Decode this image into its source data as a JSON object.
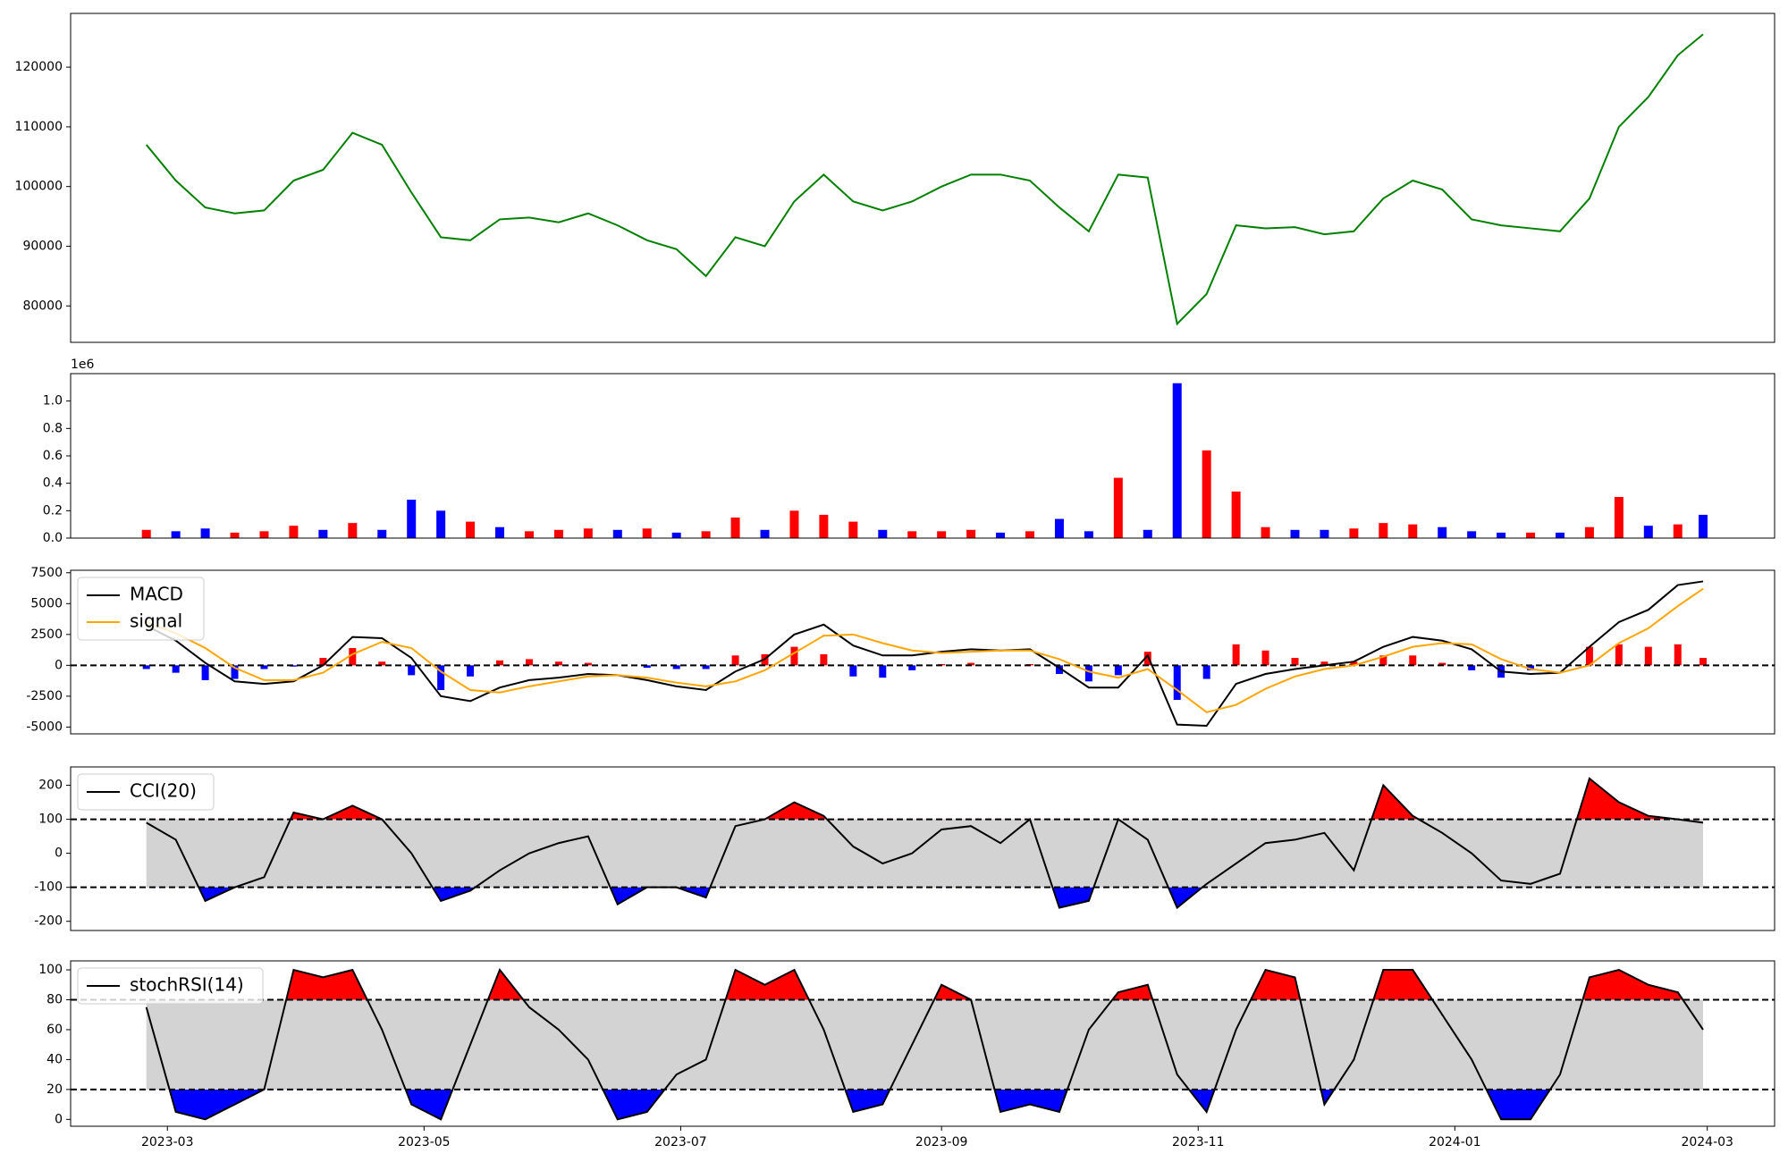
{
  "chart_data": [
    {
      "type": "line",
      "x": [
        "2023-02-24",
        "2023-03-03",
        "2023-03-10",
        "2023-03-17",
        "2023-03-24",
        "2023-03-31",
        "2023-04-07",
        "2023-04-14",
        "2023-04-21",
        "2023-04-28",
        "2023-05-05",
        "2023-05-12",
        "2023-05-19",
        "2023-05-26",
        "2023-06-02",
        "2023-06-09",
        "2023-06-16",
        "2023-06-23",
        "2023-06-30",
        "2023-07-07",
        "2023-07-14",
        "2023-07-21",
        "2023-07-28",
        "2023-08-04",
        "2023-08-11",
        "2023-08-18",
        "2023-08-25",
        "2023-09-01",
        "2023-09-08",
        "2023-09-15",
        "2023-09-22",
        "2023-09-29",
        "2023-10-06",
        "2023-10-13",
        "2023-10-20",
        "2023-10-27",
        "2023-11-03",
        "2023-11-10",
        "2023-11-17",
        "2023-11-24",
        "2023-12-01",
        "2023-12-08",
        "2023-12-15",
        "2023-12-22",
        "2023-12-29",
        "2024-01-05",
        "2024-01-12",
        "2024-01-19",
        "2024-01-26",
        "2024-02-02",
        "2024-02-09",
        "2024-02-16",
        "2024-02-23",
        "2024-02-29"
      ],
      "xlim": [
        "2023-02-06",
        "2024-03-17"
      ],
      "series": [
        {
          "color": "#008000",
          "values": [
            107000,
            101000,
            96500,
            95500,
            96000,
            101000,
            102800,
            109000,
            107000,
            99000,
            91500,
            91000,
            94500,
            94800,
            94000,
            95500,
            93500,
            91000,
            89500,
            85000,
            91500,
            90000,
            97500,
            102000,
            97500,
            96000,
            97500,
            100000,
            102000,
            102000,
            101000,
            96500,
            92500,
            102000,
            101500,
            77000,
            82000,
            93500,
            93000,
            93200,
            92000,
            92500,
            98000,
            101000,
            99500,
            94500,
            93500,
            93000,
            92500,
            98000,
            110000,
            115000,
            122000,
            125500
          ]
        }
      ],
      "ylim": [
        73900,
        129000
      ],
      "yticks": [
        80000,
        90000,
        100000,
        110000,
        120000
      ]
    },
    {
      "type": "bar",
      "x": [
        "2023-02-24",
        "2023-03-03",
        "2023-03-10",
        "2023-03-17",
        "2023-03-24",
        "2023-03-31",
        "2023-04-07",
        "2023-04-14",
        "2023-04-21",
        "2023-04-28",
        "2023-05-05",
        "2023-05-12",
        "2023-05-19",
        "2023-05-26",
        "2023-06-02",
        "2023-06-09",
        "2023-06-16",
        "2023-06-23",
        "2023-06-30",
        "2023-07-07",
        "2023-07-14",
        "2023-07-21",
        "2023-07-28",
        "2023-08-04",
        "2023-08-11",
        "2023-08-18",
        "2023-08-25",
        "2023-09-01",
        "2023-09-08",
        "2023-09-15",
        "2023-09-22",
        "2023-09-29",
        "2023-10-06",
        "2023-10-13",
        "2023-10-20",
        "2023-10-27",
        "2023-11-03",
        "2023-11-10",
        "2023-11-17",
        "2023-11-24",
        "2023-12-01",
        "2023-12-08",
        "2023-12-15",
        "2023-12-22",
        "2023-12-29",
        "2024-01-05",
        "2024-01-12",
        "2024-01-19",
        "2024-01-26",
        "2024-02-02",
        "2024-02-09",
        "2024-02-16",
        "2024-02-23",
        "2024-02-29"
      ],
      "xlim": [
        "2023-02-06",
        "2024-03-17"
      ],
      "values": [
        60000,
        50000,
        70000,
        40000,
        50000,
        90000,
        60000,
        110000,
        60000,
        280000,
        200000,
        120000,
        80000,
        50000,
        60000,
        70000,
        60000,
        70000,
        40000,
        50000,
        150000,
        60000,
        200000,
        170000,
        120000,
        60000,
        50000,
        50000,
        60000,
        40000,
        50000,
        140000,
        50000,
        440000,
        60000,
        1130000,
        640000,
        340000,
        80000,
        60000,
        60000,
        70000,
        110000,
        100000,
        80000,
        50000,
        40000,
        40000,
        40000,
        80000,
        300000,
        90000,
        100000,
        170000
      ],
      "colors": [
        "red",
        "blue",
        "blue",
        "red",
        "red",
        "red",
        "blue",
        "red",
        "blue",
        "blue",
        "blue",
        "red",
        "blue",
        "red",
        "red",
        "red",
        "blue",
        "red",
        "blue",
        "red",
        "red",
        "blue",
        "red",
        "red",
        "red",
        "blue",
        "red",
        "red",
        "red",
        "blue",
        "red",
        "blue",
        "blue",
        "red",
        "blue",
        "blue",
        "red",
        "red",
        "red",
        "blue",
        "blue",
        "red",
        "red",
        "red",
        "blue",
        "blue",
        "blue",
        "red",
        "blue",
        "red",
        "red",
        "blue",
        "red",
        "blue"
      ],
      "ylim": [
        0,
        1200000
      ],
      "yticks": [
        {
          "value": 0,
          "label": "0.0"
        },
        {
          "value": 200000,
          "label": "0.2"
        },
        {
          "value": 400000,
          "label": "0.4"
        },
        {
          "value": 600000,
          "label": "0.6"
        },
        {
          "value": 800000,
          "label": "0.8"
        },
        {
          "value": 1000000,
          "label": "1.0"
        }
      ],
      "offset_label": "1e6"
    },
    {
      "type": "macd",
      "x": [
        "2023-02-24",
        "2023-03-03",
        "2023-03-10",
        "2023-03-17",
        "2023-03-24",
        "2023-03-31",
        "2023-04-07",
        "2023-04-14",
        "2023-04-21",
        "2023-04-28",
        "2023-05-05",
        "2023-05-12",
        "2023-05-19",
        "2023-05-26",
        "2023-06-02",
        "2023-06-09",
        "2023-06-16",
        "2023-06-23",
        "2023-06-30",
        "2023-07-07",
        "2023-07-14",
        "2023-07-21",
        "2023-07-28",
        "2023-08-04",
        "2023-08-11",
        "2023-08-18",
        "2023-08-25",
        "2023-09-01",
        "2023-09-08",
        "2023-09-15",
        "2023-09-22",
        "2023-09-29",
        "2023-10-06",
        "2023-10-13",
        "2023-10-20",
        "2023-10-27",
        "2023-11-03",
        "2023-11-10",
        "2023-11-17",
        "2023-11-24",
        "2023-12-01",
        "2023-12-08",
        "2023-12-15",
        "2023-12-22",
        "2023-12-29",
        "2024-01-05",
        "2024-01-12",
        "2024-01-19",
        "2024-01-26",
        "2024-02-02",
        "2024-02-09",
        "2024-02-16",
        "2024-02-23",
        "2024-02-29"
      ],
      "xlim": [
        "2023-02-06",
        "2024-03-17"
      ],
      "series": [
        {
          "name": "MACD",
          "color": "#000000",
          "values": [
            3200,
            2000,
            200,
            -1300,
            -1500,
            -1300,
            0,
            2300,
            2200,
            600,
            -2500,
            -2900,
            -1800,
            -1200,
            -1000,
            -700,
            -800,
            -1200,
            -1700,
            -2000,
            -500,
            500,
            2500,
            3300,
            1600,
            800,
            800,
            1100,
            1300,
            1200,
            1300,
            -200,
            -1800,
            -1800,
            800,
            -4800,
            -4900,
            -1500,
            -700,
            -300,
            0,
            300,
            1500,
            2300,
            2000,
            1300,
            -500,
            -700,
            -600,
            1500,
            3500,
            4500,
            6500,
            6800
          ]
        },
        {
          "name": "signal",
          "color": "#ffa500",
          "values": [
            3500,
            2600,
            1400,
            -200,
            -1200,
            -1200,
            -600,
            900,
            1900,
            1400,
            -500,
            -2000,
            -2200,
            -1700,
            -1300,
            -900,
            -800,
            -1000,
            -1400,
            -1700,
            -1300,
            -400,
            1000,
            2400,
            2500,
            1800,
            1200,
            1000,
            1100,
            1200,
            1200,
            500,
            -500,
            -1000,
            -300,
            -2000,
            -3800,
            -3200,
            -1900,
            -900,
            -300,
            0,
            700,
            1500,
            1800,
            1700,
            500,
            -300,
            -600,
            0,
            1800,
            3000,
            4800,
            6200
          ]
        }
      ],
      "bars": {
        "up_color": "red",
        "down_color": "blue",
        "values": [
          -300,
          -600,
          -1200,
          -1100,
          -300,
          -100,
          600,
          1400,
          300,
          -800,
          -2000,
          -900,
          400,
          500,
          300,
          200,
          0,
          -200,
          -300,
          -300,
          800,
          900,
          1500,
          900,
          -900,
          -1000,
          -400,
          100,
          200,
          0,
          100,
          -700,
          -1300,
          -800,
          1100,
          -2800,
          -1100,
          1700,
          1200,
          600,
          300,
          300,
          800,
          800,
          200,
          -400,
          -1000,
          -400,
          0,
          1500,
          1700,
          1500,
          1700,
          600
        ]
      },
      "levels": [
        0
      ],
      "ylim": [
        -5550,
        7700
      ],
      "yticks": [
        -5000,
        -2500,
        0,
        2500,
        5000,
        7500
      ],
      "legend": "upper left"
    },
    {
      "type": "oscillator",
      "x": [
        "2023-02-24",
        "2023-03-03",
        "2023-03-10",
        "2023-03-17",
        "2023-03-24",
        "2023-03-31",
        "2023-04-07",
        "2023-04-14",
        "2023-04-21",
        "2023-04-28",
        "2023-05-05",
        "2023-05-12",
        "2023-05-19",
        "2023-05-26",
        "2023-06-02",
        "2023-06-09",
        "2023-06-16",
        "2023-06-23",
        "2023-06-30",
        "2023-07-07",
        "2023-07-14",
        "2023-07-21",
        "2023-07-28",
        "2023-08-04",
        "2023-08-11",
        "2023-08-18",
        "2023-08-25",
        "2023-09-01",
        "2023-09-08",
        "2023-09-15",
        "2023-09-22",
        "2023-09-29",
        "2023-10-06",
        "2023-10-13",
        "2023-10-20",
        "2023-10-27",
        "2023-11-03",
        "2023-11-10",
        "2023-11-17",
        "2023-11-24",
        "2023-12-01",
        "2023-12-08",
        "2023-12-15",
        "2023-12-22",
        "2023-12-29",
        "2024-01-05",
        "2024-01-12",
        "2024-01-19",
        "2024-01-26",
        "2024-02-02",
        "2024-02-09",
        "2024-02-16",
        "2024-02-23",
        "2024-02-29"
      ],
      "xlim": [
        "2023-02-06",
        "2024-03-17"
      ],
      "series": [
        {
          "name": "CCI(20)",
          "color": "#000000",
          "values": [
            90,
            40,
            -140,
            -100,
            -70,
            120,
            100,
            140,
            100,
            0,
            -140,
            -110,
            -50,
            0,
            30,
            50,
            -150,
            -100,
            -100,
            -130,
            80,
            100,
            150,
            110,
            20,
            -30,
            0,
            70,
            80,
            30,
            100,
            -160,
            -140,
            100,
            40,
            -160,
            -90,
            -30,
            30,
            40,
            60,
            -50,
            200,
            110,
            60,
            0,
            -80,
            -90,
            -60,
            220,
            150,
            110,
            100,
            90
          ]
        }
      ],
      "levels": [
        100,
        -100
      ],
      "upper_fill": "red",
      "lower_fill": "blue",
      "band_fill": "#d3d3d3",
      "ylim": [
        -227,
        254
      ],
      "yticks": [
        -200,
        -100,
        0,
        100,
        200
      ],
      "legend": "upper left"
    },
    {
      "type": "oscillator",
      "x": [
        "2023-02-24",
        "2023-03-03",
        "2023-03-10",
        "2023-03-17",
        "2023-03-24",
        "2023-03-31",
        "2023-04-07",
        "2023-04-14",
        "2023-04-21",
        "2023-04-28",
        "2023-05-05",
        "2023-05-12",
        "2023-05-19",
        "2023-05-26",
        "2023-06-02",
        "2023-06-09",
        "2023-06-16",
        "2023-06-23",
        "2023-06-30",
        "2023-07-07",
        "2023-07-14",
        "2023-07-21",
        "2023-07-28",
        "2023-08-04",
        "2023-08-11",
        "2023-08-18",
        "2023-08-25",
        "2023-09-01",
        "2023-09-08",
        "2023-09-15",
        "2023-09-22",
        "2023-09-29",
        "2023-10-06",
        "2023-10-13",
        "2023-10-20",
        "2023-10-27",
        "2023-11-03",
        "2023-11-10",
        "2023-11-17",
        "2023-11-24",
        "2023-12-01",
        "2023-12-08",
        "2023-12-15",
        "2023-12-22",
        "2023-12-29",
        "2024-01-05",
        "2024-01-12",
        "2024-01-19",
        "2024-01-26",
        "2024-02-02",
        "2024-02-09",
        "2024-02-16",
        "2024-02-23",
        "2024-02-29"
      ],
      "xlim": [
        "2023-02-06",
        "2024-03-17"
      ],
      "series": [
        {
          "name": "stochRSI(14)",
          "color": "#000000",
          "values": [
            75,
            5,
            0,
            10,
            20,
            100,
            95,
            100,
            60,
            10,
            0,
            50,
            100,
            75,
            60,
            40,
            0,
            5,
            30,
            40,
            100,
            90,
            100,
            60,
            5,
            10,
            50,
            90,
            80,
            5,
            10,
            5,
            60,
            85,
            90,
            30,
            5,
            60,
            100,
            95,
            10,
            40,
            100,
            100,
            70,
            40,
            0,
            0,
            30,
            95,
            100,
            90,
            85,
            60
          ]
        }
      ],
      "levels": [
        80,
        20
      ],
      "upper_fill": "red",
      "lower_fill": "blue",
      "band_fill": "#d3d3d3",
      "ylim": [
        -4.6,
        106
      ],
      "yticks": [
        0,
        20,
        40,
        60,
        80,
        100
      ],
      "legend": "upper left",
      "xticks": [
        {
          "value": "2023-03-01",
          "label": "2023-03"
        },
        {
          "value": "2023-05-01",
          "label": "2023-05"
        },
        {
          "value": "2023-07-01",
          "label": "2023-07"
        },
        {
          "value": "2023-09-01",
          "label": "2023-09"
        },
        {
          "value": "2023-11-01",
          "label": "2023-11"
        },
        {
          "value": "2024-01-01",
          "label": "2024-01"
        },
        {
          "value": "2024-03-01",
          "label": "2024-03"
        }
      ]
    }
  ]
}
